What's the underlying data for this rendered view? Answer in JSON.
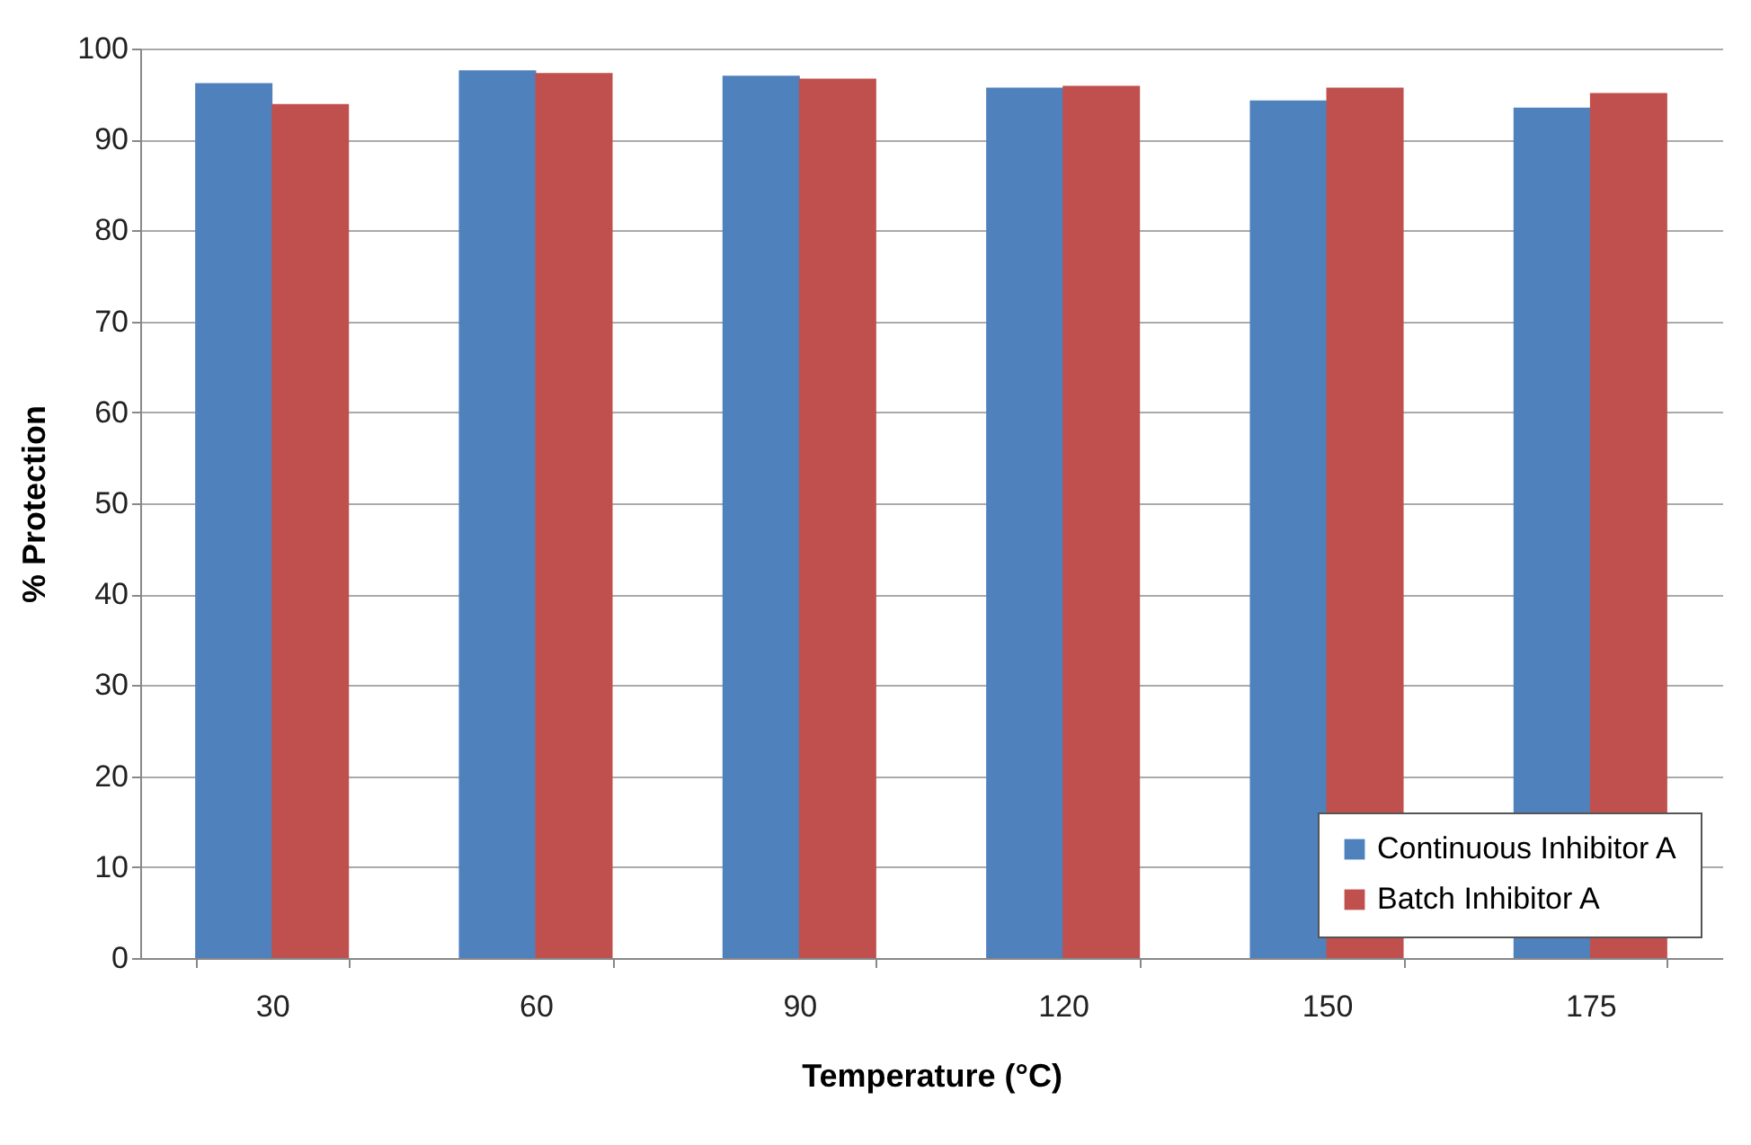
{
  "chart_data": {
    "type": "bar",
    "xlabel": "Temperature (°C)",
    "ylabel": "% Protection",
    "categories": [
      "30",
      "60",
      "90",
      "120",
      "150",
      "175"
    ],
    "series": [
      {
        "name": "Continuous Inhibitor A",
        "color": "#4f81bd",
        "values": [
          96.2,
          97.6,
          97.0,
          95.7,
          94.3,
          93.5
        ]
      },
      {
        "name": "Batch Inhibitor A",
        "color": "#c0504d",
        "values": [
          93.9,
          97.3,
          96.7,
          95.9,
          95.7,
          95.1
        ]
      }
    ],
    "ylim": [
      0,
      100
    ],
    "yticks": [
      0,
      10,
      20,
      30,
      40,
      50,
      60,
      70,
      80,
      90,
      100
    ],
    "grid": "y",
    "legend": "bottom right"
  }
}
